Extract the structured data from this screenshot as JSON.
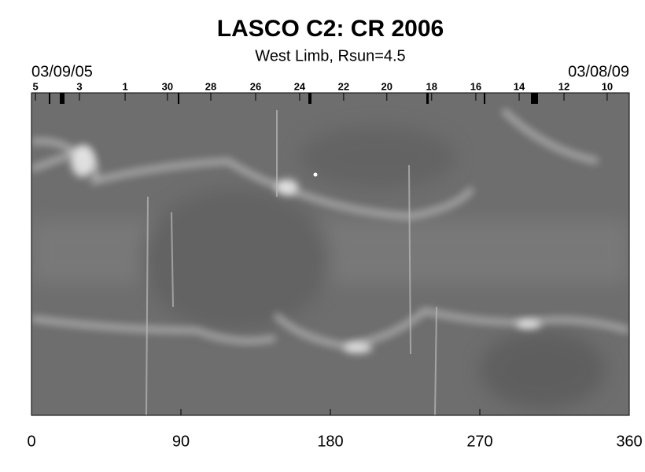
{
  "chart_data": {
    "type": "synoptic",
    "title": "LASCO C2: CR 2006",
    "subtitle": "West Limb, Rsun=4.5",
    "start_date": "03/09/05",
    "end_date": "03/08/09",
    "xlim": [
      0,
      360
    ],
    "xticks": [
      0,
      90,
      180,
      270,
      360
    ],
    "x2ticks": [
      {
        "value": 2.4,
        "label": "5"
      },
      {
        "value": 28.9,
        "label": "3"
      },
      {
        "value": 56.4,
        "label": "1"
      },
      {
        "value": 81.9,
        "label": "30"
      },
      {
        "value": 108,
        "label": "28"
      },
      {
        "value": 135,
        "label": "26"
      },
      {
        "value": 161.5,
        "label": "24"
      },
      {
        "value": 188,
        "label": "22"
      },
      {
        "value": 214,
        "label": "20"
      },
      {
        "value": 241,
        "label": "18"
      },
      {
        "value": 267.6,
        "label": "16"
      },
      {
        "value": 293.7,
        "label": "14"
      },
      {
        "value": 320.7,
        "label": "12"
      },
      {
        "value": 346.7,
        "label": "10"
      }
    ]
  }
}
